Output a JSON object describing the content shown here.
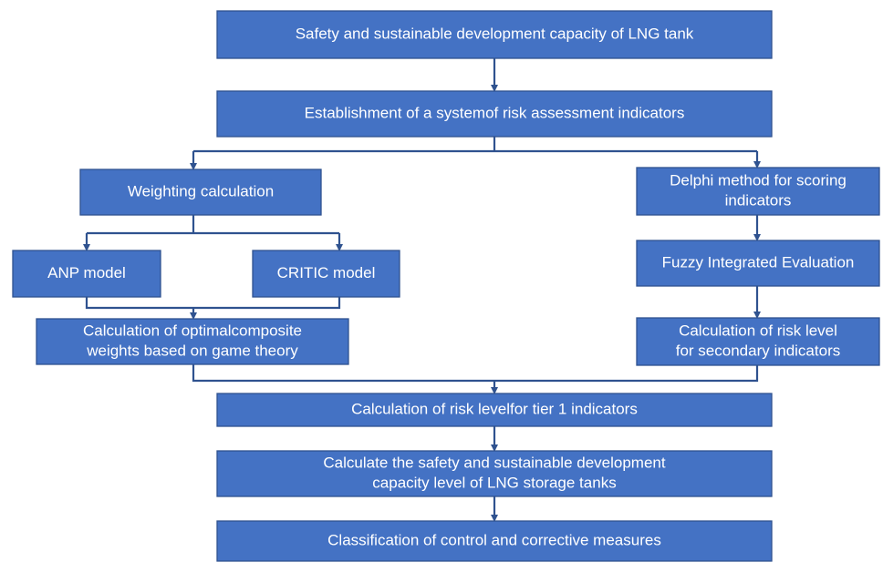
{
  "nodes": [
    {
      "lines": [
        "Safety and sustainable development capacity of LNG tank"
      ]
    },
    {
      "lines": [
        "Establishment of a systemof risk assessment indicators"
      ]
    },
    {
      "lines": [
        "Weighting calculation"
      ]
    },
    {
      "lines": [
        "Delphi method for scoring",
        "indicators"
      ]
    },
    {
      "lines": [
        "ANP model"
      ]
    },
    {
      "lines": [
        "CRITIC model"
      ]
    },
    {
      "lines": [
        "Fuzzy Integrated Evaluation"
      ]
    },
    {
      "lines": [
        "Calculation of optimalcomposite",
        "weights based on game theory"
      ]
    },
    {
      "lines": [
        "Calculation of risk level",
        "for secondary indicators"
      ]
    },
    {
      "lines": [
        "Calculation of risk levelfor tier 1 indicators"
      ]
    },
    {
      "lines": [
        "Calculate the safety and sustainable development",
        "capacity level  of  LNG storage tanks"
      ]
    },
    {
      "lines": [
        "Classification of control and corrective measures"
      ]
    }
  ]
}
